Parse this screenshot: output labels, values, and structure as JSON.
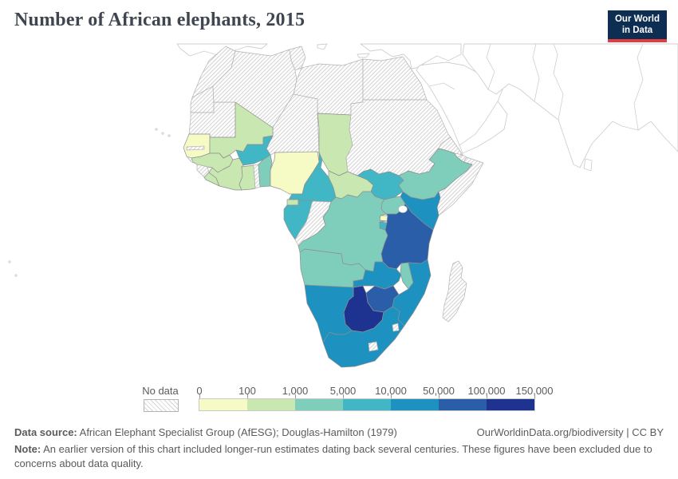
{
  "header": {
    "title": "Number of African elephants, 2015",
    "logo": {
      "line1": "Our World",
      "line2": "in Data",
      "bg_color": "#0d2e52",
      "accent_color": "#e23d3d"
    }
  },
  "legend": {
    "no_data_label": "No data",
    "tick_labels": [
      "0",
      "100",
      "1,000",
      "5,000",
      "10,000",
      "50,000",
      "100,000",
      "150,000"
    ],
    "bin_colors": [
      "#f6fbc6",
      "#c9e7b1",
      "#7fcdbb",
      "#41b6c4",
      "#1d91c0",
      "#2a5ea8",
      "#1e3390"
    ],
    "no_data_stroke": "#b3b3b3",
    "country_stroke": "#8f8f8f",
    "background_stroke": "#cfcfcf"
  },
  "footer": {
    "source_label": "Data source:",
    "source_text": " African Elephant Specialist Group (AfESG); Douglas-Hamilton (1979)",
    "link_text": "OurWorldinData.org/biodiversity | CC BY",
    "note_label": "Note:",
    "note_text": " An earlier version of this chart included longer-run estimates dating back several centuries. These figures have been excluded due to concerns about data quality."
  },
  "chart_data": {
    "type": "heatmap",
    "subtype": "choropleth-map",
    "region": "Africa",
    "title": "Number of African elephants, 2015",
    "unit": "elephants",
    "legend_position": "bottom",
    "bin_edges": [
      0,
      100,
      1000,
      5000,
      10000,
      50000,
      100000,
      150000
    ],
    "countries": [
      {
        "id": "morocco",
        "name": "Morocco",
        "bin": null,
        "range": "No data"
      },
      {
        "id": "western-sahara",
        "name": "Western Sahara",
        "bin": null,
        "range": "No data"
      },
      {
        "id": "algeria",
        "name": "Algeria",
        "bin": null,
        "range": "No data"
      },
      {
        "id": "tunisia",
        "name": "Tunisia",
        "bin": null,
        "range": "No data"
      },
      {
        "id": "libya",
        "name": "Libya",
        "bin": null,
        "range": "No data"
      },
      {
        "id": "egypt",
        "name": "Egypt",
        "bin": null,
        "range": "No data"
      },
      {
        "id": "mauritania",
        "name": "Mauritania",
        "bin": null,
        "range": "No data"
      },
      {
        "id": "niger",
        "name": "Niger",
        "bin": null,
        "range": "No data"
      },
      {
        "id": "sudan",
        "name": "Sudan",
        "bin": null,
        "range": "No data"
      },
      {
        "id": "eritrea",
        "name": "Eritrea",
        "bin": null,
        "range": "No data"
      },
      {
        "id": "djibouti",
        "name": "Djibouti",
        "bin": null,
        "range": "No data"
      },
      {
        "id": "somalia",
        "name": "Somalia",
        "bin": null,
        "range": "No data"
      },
      {
        "id": "gambia",
        "name": "Gambia",
        "bin": null,
        "range": "No data"
      },
      {
        "id": "guinea-bissau",
        "name": "Guinea-Bissau",
        "bin": null,
        "range": "No data"
      },
      {
        "id": "sierra-leone",
        "name": "Sierra Leone",
        "bin": null,
        "range": "No data"
      },
      {
        "id": "togo",
        "name": "Togo",
        "bin": null,
        "range": "No data"
      },
      {
        "id": "congo",
        "name": "Congo",
        "bin": null,
        "range": "No data"
      },
      {
        "id": "madagascar",
        "name": "Madagascar",
        "bin": null,
        "range": "No data"
      },
      {
        "id": "lesotho",
        "name": "Lesotho",
        "bin": null,
        "range": "No data"
      },
      {
        "id": "eswatini",
        "name": "Eswatini",
        "bin": null,
        "range": "No data"
      },
      {
        "id": "senegal",
        "name": "Senegal",
        "bin": 0,
        "range": "0-100"
      },
      {
        "id": "nigeria",
        "name": "Nigeria",
        "bin": 0,
        "range": "0-100"
      },
      {
        "id": "rwanda",
        "name": "Rwanda",
        "bin": 0,
        "range": "0-100"
      },
      {
        "id": "mali",
        "name": "Mali",
        "bin": 1,
        "range": "100-1,000"
      },
      {
        "id": "guinea",
        "name": "Guinea",
        "bin": 1,
        "range": "100-1,000"
      },
      {
        "id": "liberia",
        "name": "Liberia",
        "bin": 1,
        "range": "100-1,000"
      },
      {
        "id": "cote-divoire",
        "name": "Cote d'Ivoire",
        "bin": 1,
        "range": "100-1,000"
      },
      {
        "id": "ghana",
        "name": "Ghana",
        "bin": 1,
        "range": "100-1,000"
      },
      {
        "id": "chad",
        "name": "Chad",
        "bin": 1,
        "range": "100-1,000"
      },
      {
        "id": "central-african-republic",
        "name": "Central African Republic",
        "bin": 1,
        "range": "100-1,000"
      },
      {
        "id": "equatorial-guinea",
        "name": "Equatorial Guinea",
        "bin": 1,
        "range": "100-1,000"
      },
      {
        "id": "benin",
        "name": "Benin",
        "bin": 2,
        "range": "1,000-5,000"
      },
      {
        "id": "ethiopia",
        "name": "Ethiopia",
        "bin": 2,
        "range": "1,000-5,000"
      },
      {
        "id": "uganda",
        "name": "Uganda",
        "bin": 2,
        "range": "1,000-5,000"
      },
      {
        "id": "dr-congo",
        "name": "Democratic Republic of Congo",
        "bin": 2,
        "range": "1,000-5,000"
      },
      {
        "id": "angola",
        "name": "Angola",
        "bin": 2,
        "range": "1,000-5,000"
      },
      {
        "id": "malawi",
        "name": "Malawi",
        "bin": 2,
        "range": "1,000-5,000"
      },
      {
        "id": "burkina-faso",
        "name": "Burkina Faso",
        "bin": 3,
        "range": "5,000-10,000"
      },
      {
        "id": "cameroon",
        "name": "Cameroon",
        "bin": 3,
        "range": "5,000-10,000"
      },
      {
        "id": "south-sudan",
        "name": "South Sudan",
        "bin": 3,
        "range": "5,000-10,000"
      },
      {
        "id": "gabon",
        "name": "Gabon",
        "bin": 3,
        "range": "5,000-10,000"
      },
      {
        "id": "burundi",
        "name": "Burundi",
        "bin": 3,
        "range": "5,000-10,000"
      },
      {
        "id": "kenya",
        "name": "Kenya",
        "bin": 4,
        "range": "10,000-50,000"
      },
      {
        "id": "zambia",
        "name": "Zambia",
        "bin": 4,
        "range": "10,000-50,000"
      },
      {
        "id": "mozambique",
        "name": "Mozambique",
        "bin": 4,
        "range": "10,000-50,000"
      },
      {
        "id": "namibia",
        "name": "Namibia",
        "bin": 4,
        "range": "10,000-50,000"
      },
      {
        "id": "south-africa",
        "name": "South Africa",
        "bin": 4,
        "range": "10,000-50,000"
      },
      {
        "id": "tanzania",
        "name": "Tanzania",
        "bin": 5,
        "range": "50,000-100,000"
      },
      {
        "id": "zimbabwe",
        "name": "Zimbabwe",
        "bin": 5,
        "range": "50,000-100,000"
      },
      {
        "id": "botswana",
        "name": "Botswana",
        "bin": 6,
        "range": "100,000-150,000"
      }
    ]
  }
}
